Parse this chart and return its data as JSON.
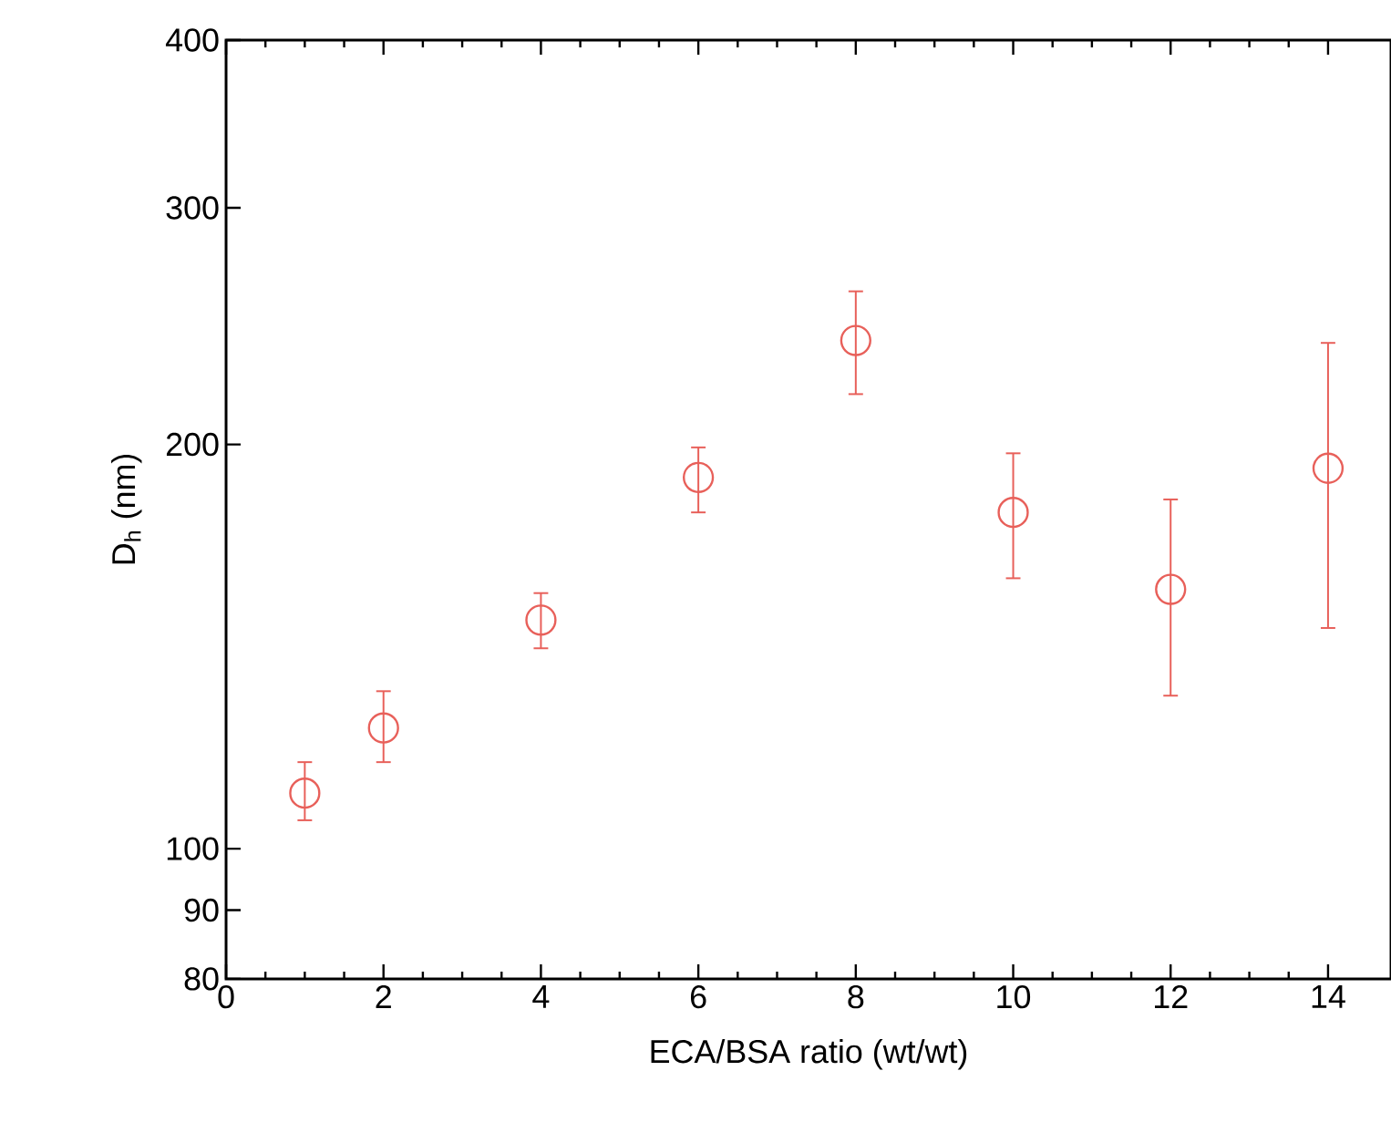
{
  "chart_data": {
    "type": "scatter",
    "xlabel": "ECA/BSA ratio (wt/wt)",
    "ylabel": "D$_{h}$ (nm)",
    "x": [
      1,
      2,
      4,
      6,
      8,
      10,
      12,
      14
    ],
    "series": [
      {
        "color": "#e8605a",
        "values": [
          110,
          123,
          148,
          189,
          239,
          178,
          156,
          192
        ],
        "errors": [
          [
            105,
            116
          ],
          [
            116,
            131
          ],
          [
            141,
            155
          ],
          [
            178,
            199
          ],
          [
            218,
            260
          ],
          [
            159,
            197
          ],
          [
            130,
            182
          ],
          [
            146,
            238
          ]
        ]
      }
    ],
    "marker": "circle",
    "log": "y",
    "grid": false,
    "xlim": [
      0,
      14.8
    ],
    "ylim": [
      80,
      400
    ],
    "xticks": [
      0,
      2,
      4,
      6,
      8,
      10,
      12,
      14
    ],
    "yticks": [
      80,
      90,
      100,
      200,
      300,
      400
    ]
  }
}
